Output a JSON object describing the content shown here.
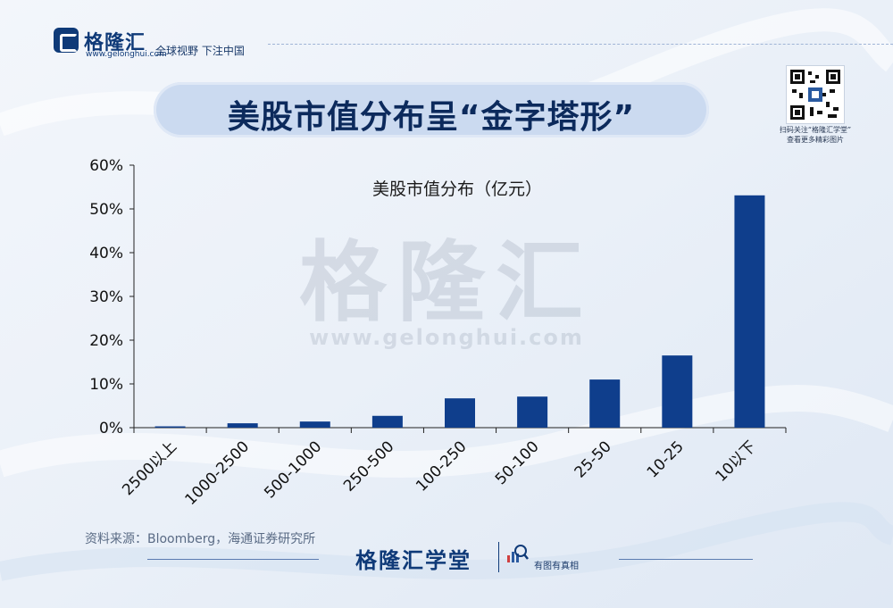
{
  "header": {
    "logo_name": "格隆汇",
    "logo_url": "www.gelonghui.com",
    "slogan": "全球视野 下注中国",
    "qr_caption_line1": "扫码关注“格隆汇学堂”",
    "qr_caption_line2": "查看更多精彩图片"
  },
  "title": "美股市值分布呈“金字塔形”",
  "watermark": {
    "name": "格隆汇",
    "url": "www.gelonghui.com"
  },
  "footer": {
    "source": "资料来源：Bloomberg，海通证券研究所",
    "brand": "格隆汇学堂",
    "tagline": "有图有真相"
  },
  "colors": {
    "bar": "#0f3e8c",
    "brand": "#0f3a78",
    "title_pill": "#cbdaf0"
  },
  "chart_data": {
    "type": "bar",
    "title": "美股市值分布（亿元）",
    "categories": [
      "2500以上",
      "1000-2500",
      "500-1000",
      "250-500",
      "100-250",
      "50-100",
      "25-50",
      "10-25",
      "10以下"
    ],
    "values": [
      0.3,
      1.0,
      1.4,
      2.7,
      6.7,
      7.1,
      11.0,
      16.5,
      53.1
    ],
    "y_ticks": [
      "0%",
      "10%",
      "20%",
      "30%",
      "40%",
      "50%",
      "60%"
    ],
    "ylim": [
      0,
      60
    ],
    "unit": "%",
    "xlabel": "",
    "ylabel": "",
    "grid": false,
    "legend": "none"
  }
}
